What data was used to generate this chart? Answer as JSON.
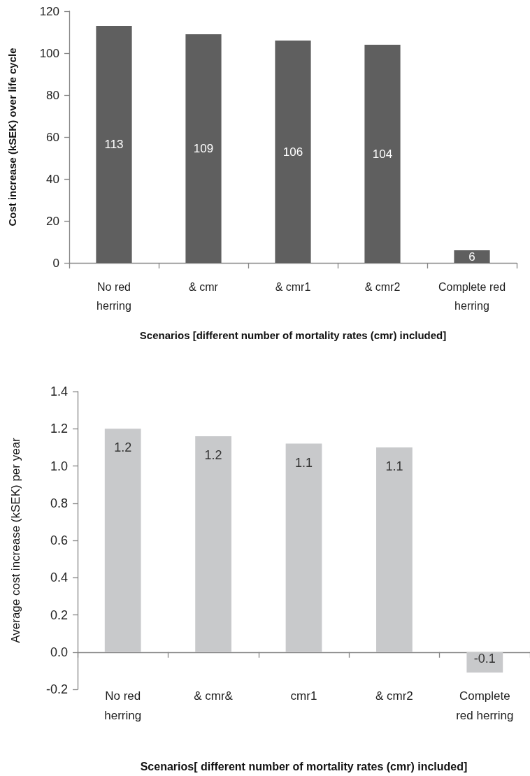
{
  "chart_data": [
    {
      "type": "bar",
      "categories": [
        "No red herring",
        "& cmr",
        "& cmr1",
        "& cmr2",
        "Complete red herring"
      ],
      "values": [
        113,
        109,
        106,
        104,
        6
      ],
      "color": "#5f5f5f",
      "ylim": [
        0,
        120
      ],
      "yticks": [
        0,
        20,
        40,
        60,
        80,
        100,
        120
      ],
      "xlabel": "Scenarios [different number of mortality rates (cmr) included]",
      "ylabel": "Cost increase (kSEK) over life cycle",
      "data_labels": true
    },
    {
      "type": "bar",
      "categories": [
        "No red herring",
        "& cmr&",
        "cmr1",
        "& cmr2",
        "Complete red herring"
      ],
      "values": [
        1.2,
        1.16,
        1.12,
        1.1,
        -0.11
      ],
      "value_labels": [
        "1.2",
        "1.2",
        "1.1",
        "1.1",
        "-0.1"
      ],
      "color": "#c8c9cb",
      "ylim": [
        -0.2,
        1.4
      ],
      "yticks": [
        -0.2,
        {
          "value": 0,
          "label": "0.0"
        },
        0.2,
        0.4,
        0.6,
        0.8,
        {
          "value": 1,
          "label": "1.0"
        },
        1.2,
        1.4
      ],
      "xlabel": "Scenarios[ different number of mortality rates (cmr) included]",
      "ylabel": "Average cost increase (kSEK) per year"
    }
  ]
}
